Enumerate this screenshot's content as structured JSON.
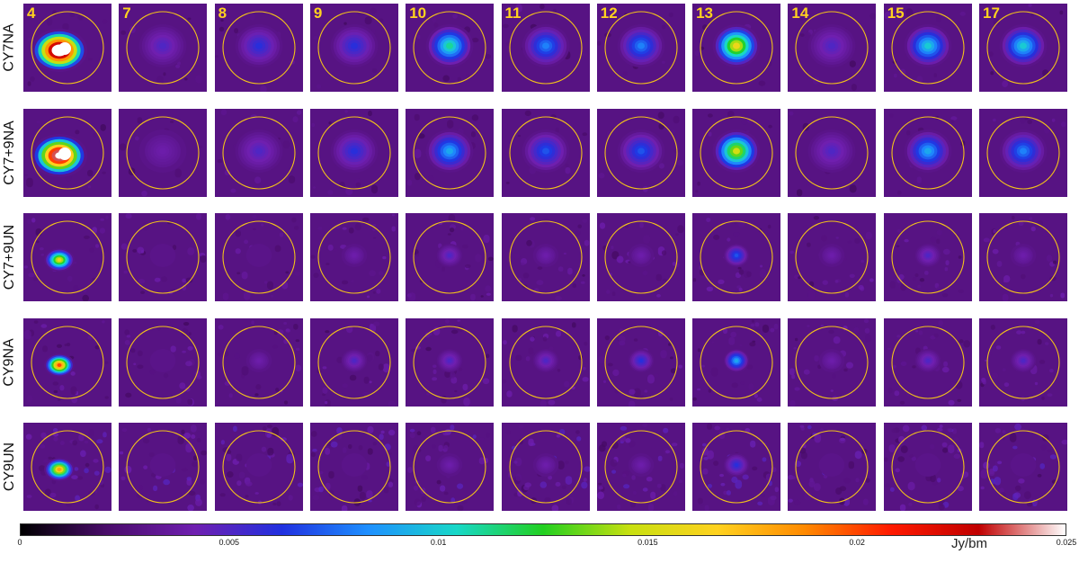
{
  "figure": {
    "columns": [
      "4",
      "7",
      "8",
      "9",
      "10",
      "11",
      "12",
      "13",
      "14",
      "15",
      "17"
    ],
    "rows": [
      {
        "label": "CY7NA",
        "peaks": [
          0.03,
          0.005,
          0.006,
          0.006,
          0.011,
          0.008,
          0.008,
          0.016,
          0.005,
          0.01,
          0.01
        ],
        "noise": "smooth"
      },
      {
        "label": "CY7+9NA",
        "peaks": [
          0.027,
          0.004,
          0.005,
          0.006,
          0.009,
          0.007,
          0.007,
          0.015,
          0.005,
          0.009,
          0.008
        ],
        "noise": "smooth"
      },
      {
        "label": "CY7+9UN",
        "peaks": [
          0.016,
          0.003,
          0.003,
          0.004,
          0.005,
          0.004,
          0.004,
          0.007,
          0.004,
          0.005,
          0.004
        ],
        "noise": "fine"
      },
      {
        "label": "CY9NA",
        "peaks": [
          0.02,
          0.003,
          0.004,
          0.005,
          0.005,
          0.005,
          0.006,
          0.009,
          0.004,
          0.005,
          0.005
        ],
        "noise": "fine"
      },
      {
        "label": "CY9UN",
        "peaks": [
          0.018,
          0.002,
          0.003,
          0.003,
          0.004,
          0.004,
          0.004,
          0.006,
          0.003,
          0.003,
          0.003
        ],
        "noise": "coarse"
      }
    ],
    "circle_color": "#f2c21a"
  },
  "colorbar": {
    "unit": "Jy/bm",
    "min": 0,
    "max": 0.025,
    "ticks": [
      "0",
      "0.005",
      "0.01",
      "0.015",
      "0.02",
      "0.025"
    ],
    "tick_values": [
      0,
      0.005,
      0.01,
      0.015,
      0.02,
      0.025
    ],
    "stops": [
      "#000000",
      "#4a0c6b",
      "#6f1fb0",
      "#2030e0",
      "#1e90ff",
      "#18d8c8",
      "#22d020",
      "#c8e010",
      "#ffd21f",
      "#ff8a00",
      "#ff1a00",
      "#c00000",
      "#ffffff"
    ]
  }
}
